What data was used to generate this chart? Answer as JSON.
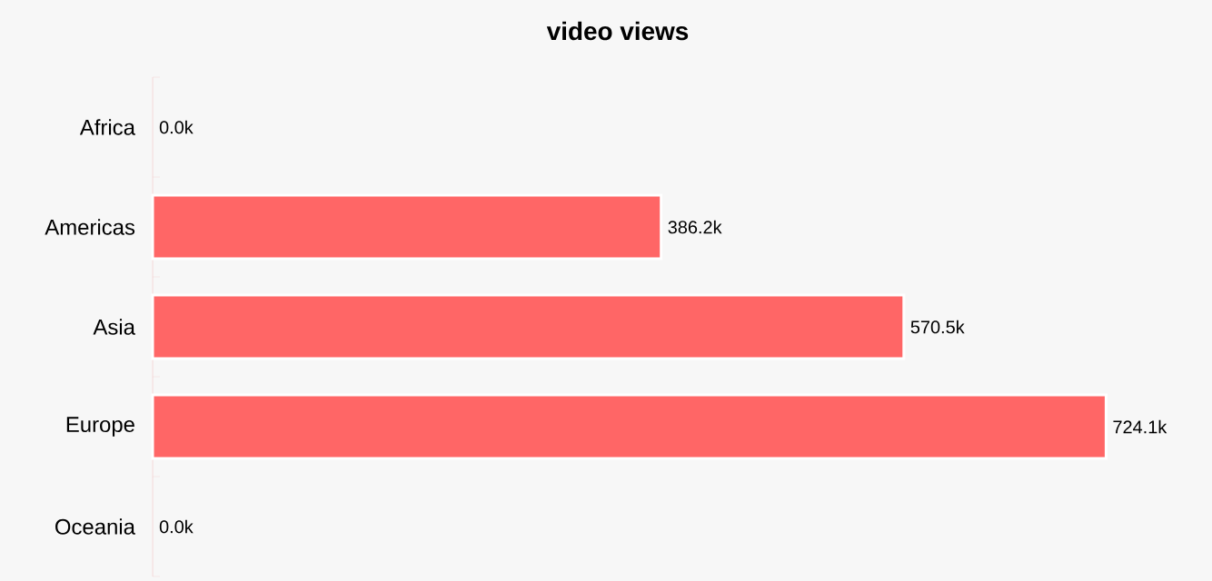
{
  "chart_data": {
    "type": "bar",
    "orientation": "horizontal",
    "title": "video views",
    "categories": [
      "Africa",
      "Americas",
      "Asia",
      "Europe",
      "Oceania"
    ],
    "values": [
      0,
      386200,
      570500,
      724100,
      0
    ],
    "value_labels": [
      "0.0k",
      "386.2k",
      "570.5k",
      "724.1k",
      "0.0k"
    ],
    "color": "#ff6666"
  }
}
